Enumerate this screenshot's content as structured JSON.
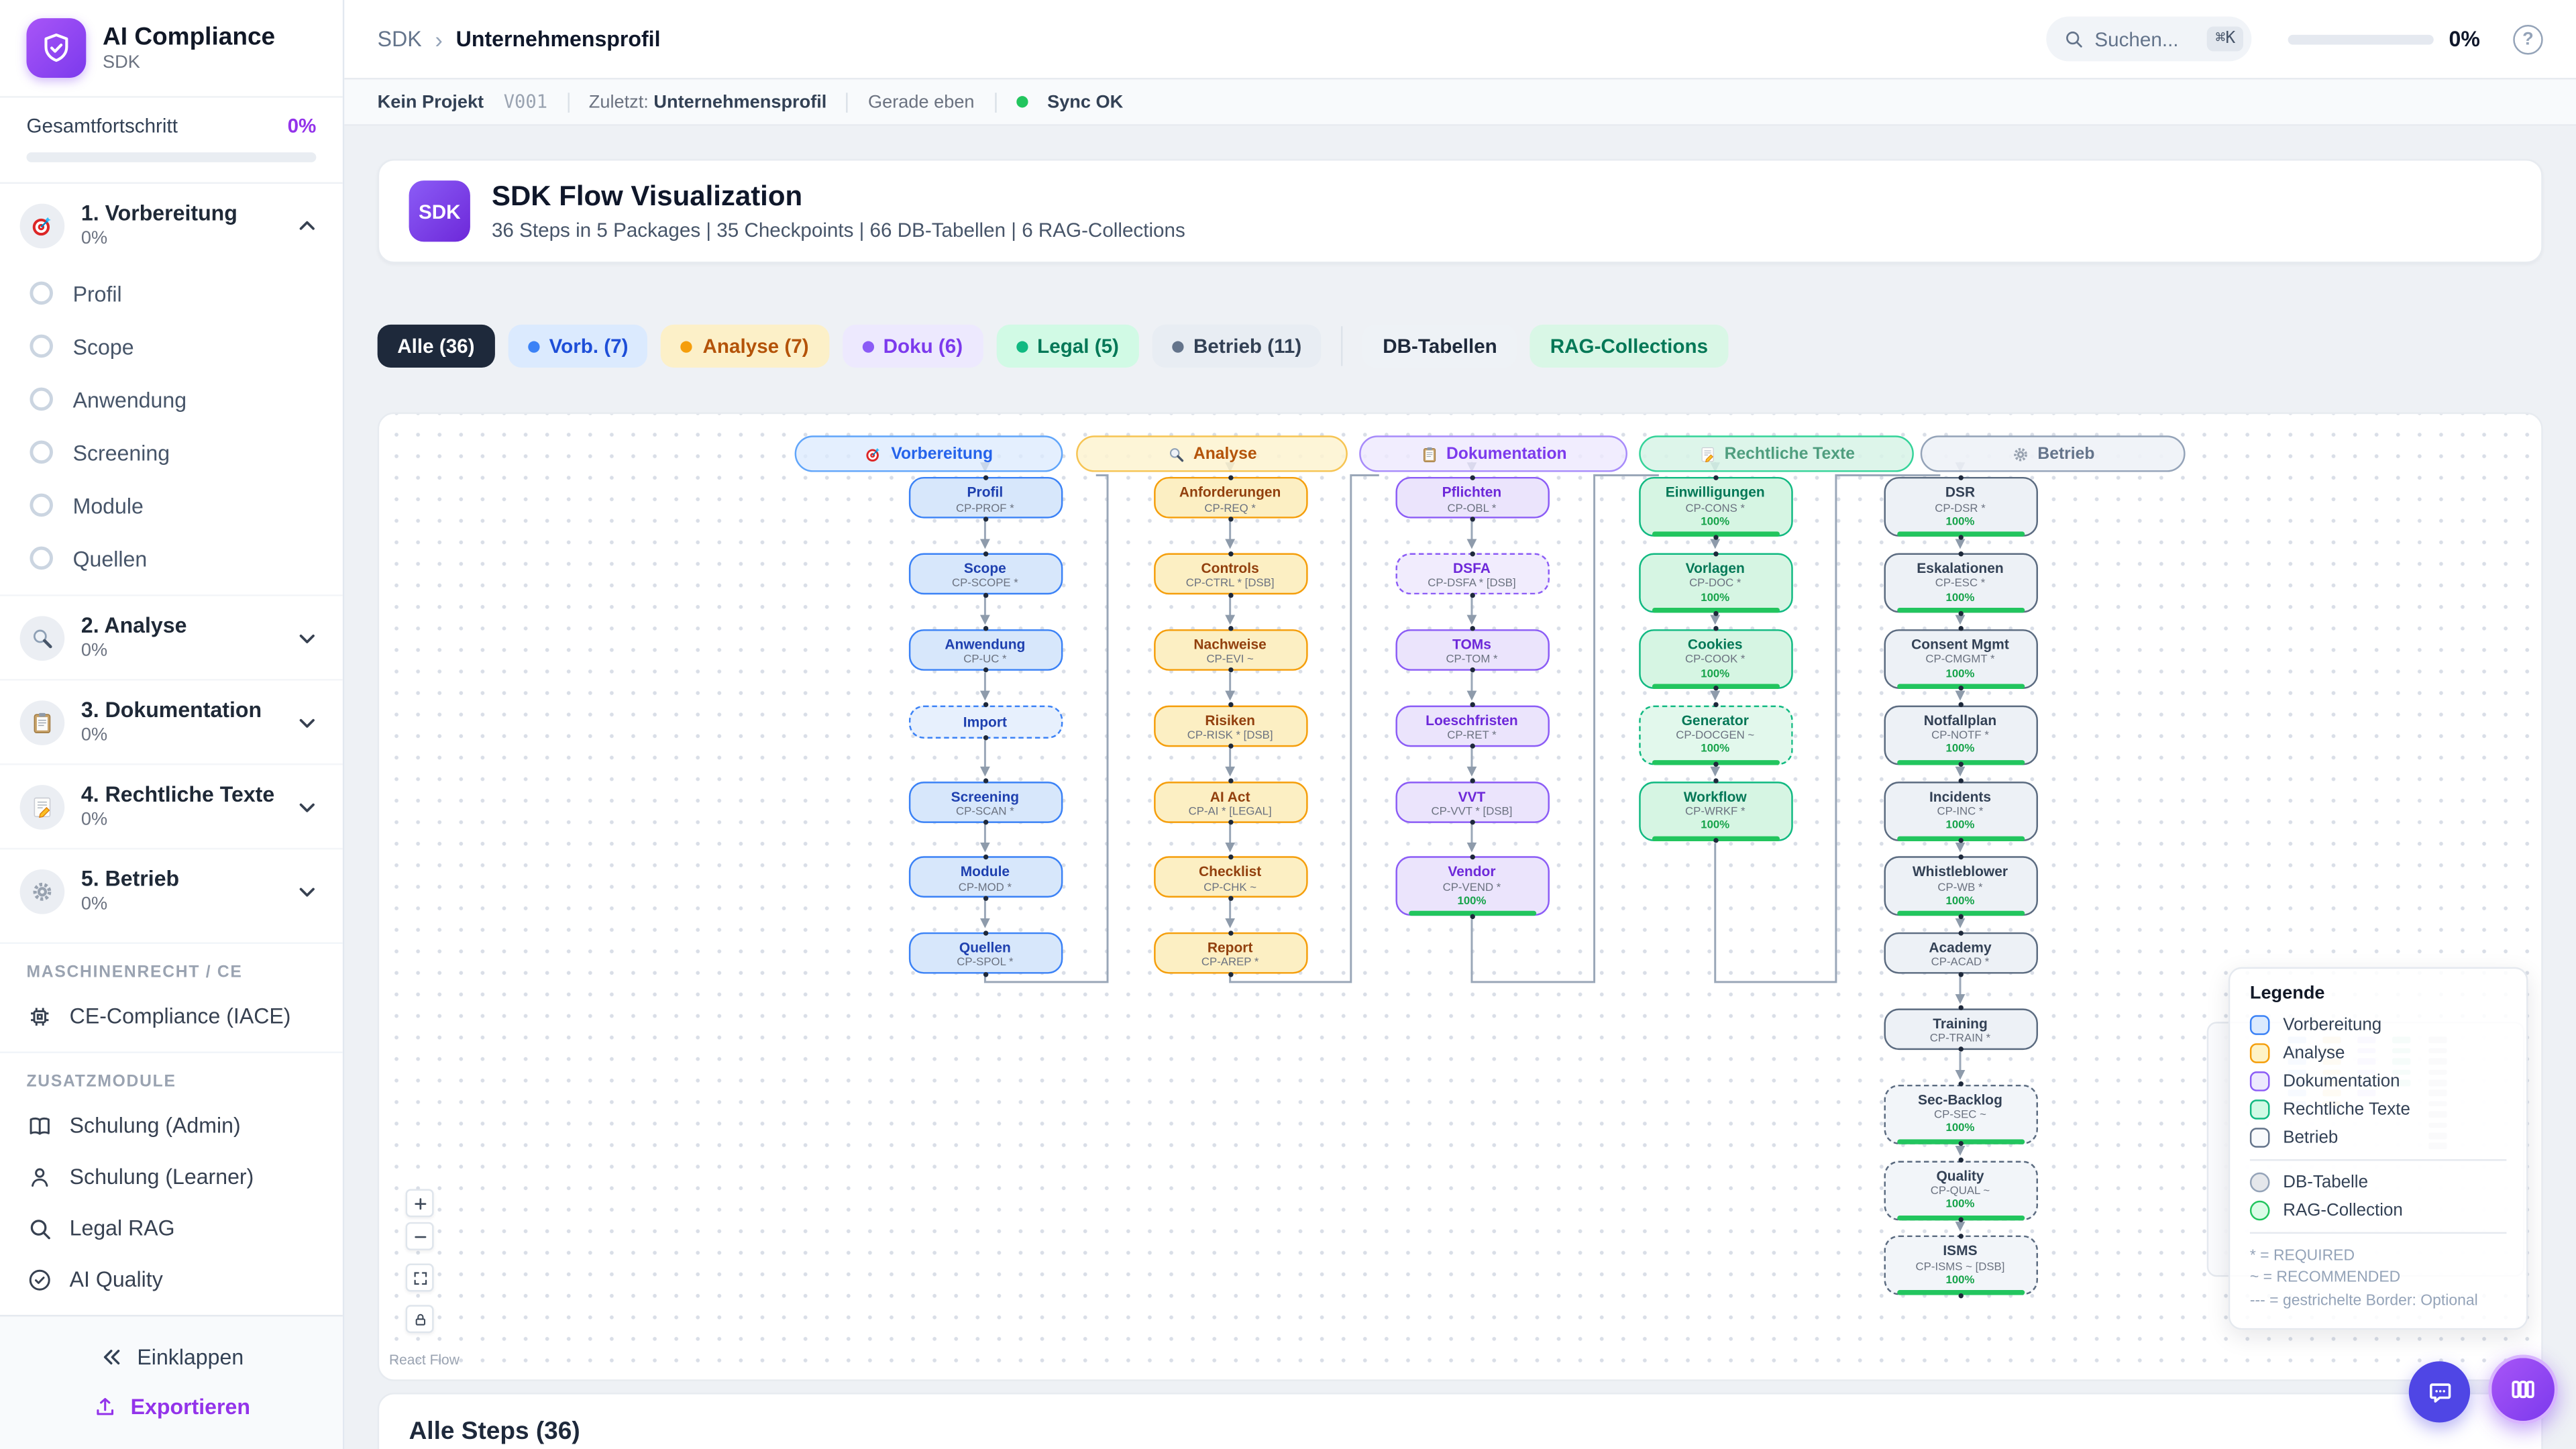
{
  "app": {
    "title": "AI Compliance",
    "subtitle": "SDK",
    "accent_color": "#7c3aed"
  },
  "sidebar": {
    "overall": {
      "label": "Gesamtfortschritt",
      "value": "0%",
      "percent": 0
    },
    "phases": [
      {
        "label": "1. Vorbereitung",
        "progress": "0%",
        "icon": "target-icon",
        "expanded": true,
        "subitems": [
          {
            "label": "Profil"
          },
          {
            "label": "Scope"
          },
          {
            "label": "Anwendung"
          },
          {
            "label": "Screening"
          },
          {
            "label": "Module"
          },
          {
            "label": "Quellen"
          }
        ]
      },
      {
        "label": "2. Analyse",
        "progress": "0%",
        "icon": "magnifier-icon",
        "expanded": false,
        "subitems": []
      },
      {
        "label": "3. Dokumentation",
        "progress": "0%",
        "icon": "clipboard-icon",
        "expanded": false,
        "subitems": []
      },
      {
        "label": "4. Rechtliche Texte",
        "progress": "0%",
        "icon": "memo-icon",
        "expanded": false,
        "subitems": []
      },
      {
        "label": "5. Betrieb",
        "progress": "0%",
        "icon": "gear-icon",
        "expanded": false,
        "subitems": []
      }
    ],
    "sections": [
      {
        "heading": "MASCHINENRECHT / CE",
        "items": [
          {
            "label": "CE-Compliance (IACE)",
            "icon": "chip-icon"
          }
        ]
      },
      {
        "heading": "ZUSATZMODULE",
        "items": [
          {
            "label": "Schulung (Admin)",
            "icon": "book-icon"
          },
          {
            "label": "Schulung (Learner)",
            "icon": "person-icon"
          },
          {
            "label": "Legal RAG",
            "icon": "search-icon"
          },
          {
            "label": "AI Quality",
            "icon": "check-circle-icon"
          }
        ]
      }
    ],
    "footer": {
      "collapse": "Einklappen",
      "export": "Exportieren"
    }
  },
  "topbar": {
    "breadcrumb_root": "SDK",
    "breadcrumb_sep": "›",
    "breadcrumb_current": "Unternehmensprofil",
    "search_placeholder": "Suchen...",
    "search_shortcut": "⌘K",
    "progress_value": "0%",
    "progress_percent": 0,
    "help_glyph": "?"
  },
  "statusbar": {
    "project": "Kein Projekt",
    "version": "V001",
    "last_label": "Zuletzt:",
    "last_value": "Unternehmensprofil",
    "time": "Gerade eben",
    "sync": "Sync OK",
    "sync_color": "#22c55e"
  },
  "hero": {
    "badge": "SDK",
    "title": "SDK Flow Visualization",
    "subtitle": "36 Steps in 5 Packages | 35 Checkpoints | 66 DB-Tabellen | 6 RAG-Collections"
  },
  "filters": [
    {
      "label": "Alle (36)",
      "style": "dark",
      "active": true
    },
    {
      "label": "Vorb. (7)",
      "style": "blue",
      "dot": "#3b82f6"
    },
    {
      "label": "Analyse (7)",
      "style": "amber",
      "dot": "#f59e0b"
    },
    {
      "label": "Doku (6)",
      "style": "purple",
      "dot": "#8b5cf6"
    },
    {
      "label": "Legal (5)",
      "style": "green",
      "dot": "#10b981"
    },
    {
      "label": "Betrieb (11)",
      "style": "slate",
      "dot": "#64748b"
    },
    {
      "label": "DB-Tabellen",
      "style": "ghost"
    },
    {
      "label": "RAG-Collections",
      "style": "rag"
    }
  ],
  "flow": {
    "packages": [
      {
        "label": "Vorbereitung",
        "icon": "target-icon",
        "color": "blue",
        "nodes": [
          {
            "title": "Profil",
            "code": "CP-PROF *"
          },
          {
            "title": "Scope",
            "code": "CP-SCOPE *"
          },
          {
            "title": "Anwendung",
            "code": "CP-UC *"
          },
          {
            "title": "Import",
            "code": "",
            "dashed": true
          },
          {
            "title": "Screening",
            "code": "CP-SCAN *"
          },
          {
            "title": "Module",
            "code": "CP-MOD *"
          },
          {
            "title": "Quellen",
            "code": "CP-SPOL *"
          }
        ]
      },
      {
        "label": "Analyse",
        "icon": "magnifier-icon",
        "color": "amber",
        "nodes": [
          {
            "title": "Anforderungen",
            "code": "CP-REQ *"
          },
          {
            "title": "Controls",
            "code": "CP-CTRL * [DSB]"
          },
          {
            "title": "Nachweise",
            "code": "CP-EVI ~"
          },
          {
            "title": "Risiken",
            "code": "CP-RISK * [DSB]"
          },
          {
            "title": "AI Act",
            "code": "CP-AI * [LEGAL]"
          },
          {
            "title": "Checklist",
            "code": "CP-CHK ~"
          },
          {
            "title": "Report",
            "code": "CP-AREP *"
          }
        ]
      },
      {
        "label": "Dokumentation",
        "icon": "clipboard-icon",
        "color": "purple",
        "nodes": [
          {
            "title": "Pflichten",
            "code": "CP-OBL *"
          },
          {
            "title": "DSFA",
            "code": "CP-DSFA * [DSB]",
            "dashed": true
          },
          {
            "title": "TOMs",
            "code": "CP-TOM *"
          },
          {
            "title": "Loeschfristen",
            "code": "CP-RET *"
          },
          {
            "title": "VVT",
            "code": "CP-VVT * [DSB]"
          },
          {
            "title": "Vendor",
            "code": "CP-VEND *",
            "progress": "100%"
          }
        ]
      },
      {
        "label": "Rechtliche Texte",
        "icon": "memo-icon",
        "color": "green",
        "nodes": [
          {
            "title": "Einwilligungen",
            "code": "CP-CONS *",
            "progress": "100%"
          },
          {
            "title": "Vorlagen",
            "code": "CP-DOC *",
            "progress": "100%"
          },
          {
            "title": "Cookies",
            "code": "CP-COOK *",
            "progress": "100%"
          },
          {
            "title": "Generator",
            "code": "CP-DOCGEN ~",
            "progress": "100%",
            "dashed": true
          },
          {
            "title": "Workflow",
            "code": "CP-WRKF *",
            "progress": "100%"
          }
        ]
      },
      {
        "label": "Betrieb",
        "icon": "gear-icon",
        "color": "slate",
        "nodes": [
          {
            "title": "DSR",
            "code": "CP-DSR *",
            "progress": "100%"
          },
          {
            "title": "Eskalationen",
            "code": "CP-ESC *",
            "progress": "100%"
          },
          {
            "title": "Consent Mgmt",
            "code": "CP-CMGMT *",
            "progress": "100%"
          },
          {
            "title": "Notfallplan",
            "code": "CP-NOTF *",
            "progress": "100%"
          },
          {
            "title": "Incidents",
            "code": "CP-INC *",
            "progress": "100%"
          },
          {
            "title": "Whistleblower",
            "code": "CP-WB *",
            "progress": "100%"
          },
          {
            "title": "Academy",
            "code": "CP-ACAD *"
          },
          {
            "title": "Training",
            "code": "CP-TRAIN *"
          },
          {
            "title": "Sec-Backlog",
            "code": "CP-SEC ~",
            "progress": "100%",
            "dashed": true
          },
          {
            "title": "Quality",
            "code": "CP-QUAL ~",
            "progress": "100%",
            "dashed": true
          },
          {
            "title": "ISMS",
            "code": "CP-ISMS ~ [DSB]",
            "progress": "100%",
            "dashed": true
          }
        ]
      }
    ],
    "legend": {
      "title": "Legende",
      "items": [
        {
          "label": "Vorbereitung",
          "border": "#3b82f6",
          "fill": "#dbeafe"
        },
        {
          "label": "Analyse",
          "border": "#f59e0b",
          "fill": "#fef3c7"
        },
        {
          "label": "Dokumentation",
          "border": "#8b5cf6",
          "fill": "#ede9fe"
        },
        {
          "label": "Rechtliche Texte",
          "border": "#10b981",
          "fill": "#d1fae5"
        },
        {
          "label": "Betrieb",
          "border": "#64748b",
          "fill": "#f8fafc"
        }
      ],
      "shapes": [
        {
          "label": "DB-Tabelle",
          "border": "#94a3b8",
          "fill": "#e5e7eb"
        },
        {
          "label": "RAG-Collection",
          "border": "#22c55e",
          "fill": "#dcfce7"
        }
      ],
      "notes": [
        "* = REQUIRED",
        "~ = RECOMMENDED",
        "--- = gestrichelte Border: Optional"
      ]
    },
    "attribution": "React Flow"
  },
  "steps_section": {
    "title": "Alle Steps (36)"
  }
}
